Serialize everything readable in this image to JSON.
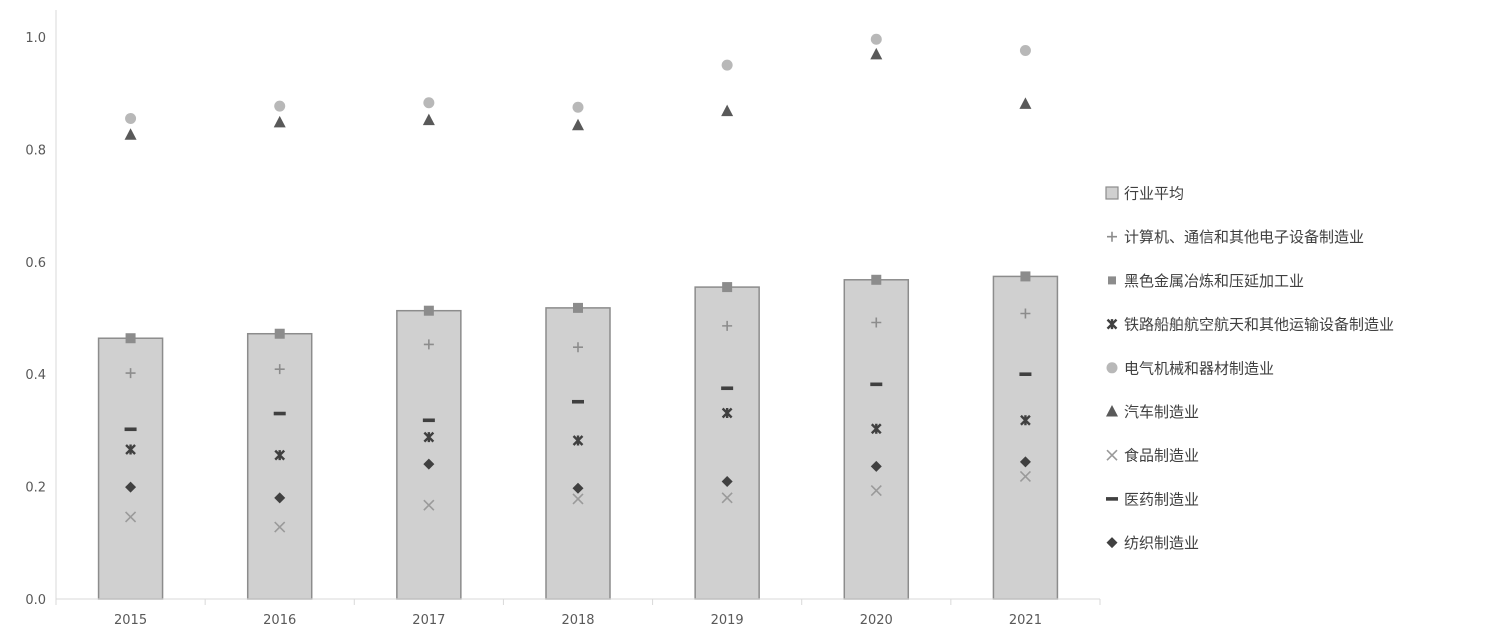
{
  "chart_data": {
    "type": "bar",
    "title": "",
    "xlabel": "",
    "ylabel": "",
    "ylim": [
      0,
      1.05
    ],
    "yticks": [
      "0.0",
      "0.2",
      "0.4",
      "0.6",
      "0.8",
      "1.0"
    ],
    "grid": false,
    "legend_position": "right",
    "categories": [
      "2015",
      "2016",
      "2017",
      "2018",
      "2019",
      "2020",
      "2021"
    ],
    "series": [
      {
        "name": "行业平均",
        "kind": "bar",
        "marker": "bar",
        "color": "#d0d0d0",
        "values": [
          0.464,
          0.472,
          0.513,
          0.518,
          0.555,
          0.568,
          0.574
        ]
      },
      {
        "name": "计算机、通信和其他电子设备制造业",
        "marker": "plus",
        "color": "#8c8c8c",
        "values": [
          0.402,
          0.409,
          0.453,
          0.448,
          0.486,
          0.492,
          0.508
        ]
      },
      {
        "name": "黑色金属冶炼和压延加工业",
        "marker": "square",
        "color": "#8c8c8c",
        "values": [
          0.464,
          0.472,
          0.513,
          0.518,
          0.555,
          0.568,
          0.574
        ]
      },
      {
        "name": "铁路船舶航空航天和其他运输设备制造业",
        "marker": "star",
        "color": "#404040",
        "values": [
          0.266,
          0.256,
          0.288,
          0.282,
          0.331,
          0.303,
          0.318
        ]
      },
      {
        "name": "电气机械和器材制造业",
        "marker": "circle",
        "color": "#b8b8b8",
        "values": [
          0.855,
          0.877,
          0.883,
          0.875,
          0.95,
          0.996,
          0.976
        ]
      },
      {
        "name": "汽车制造业",
        "marker": "triangle",
        "color": "#595959",
        "values": [
          0.826,
          0.848,
          0.852,
          0.843,
          0.868,
          0.969,
          0.881
        ]
      },
      {
        "name": "食品制造业",
        "marker": "x",
        "color": "#9a9a9a",
        "values": [
          0.146,
          0.128,
          0.167,
          0.178,
          0.18,
          0.193,
          0.218
        ]
      },
      {
        "name": "医药制造业",
        "marker": "dash",
        "color": "#404040",
        "values": [
          0.302,
          0.33,
          0.318,
          0.351,
          0.375,
          0.382,
          0.4
        ]
      },
      {
        "name": "纺织制造业",
        "marker": "diamond",
        "color": "#404040",
        "values": [
          0.199,
          0.18,
          0.24,
          0.197,
          0.209,
          0.236,
          0.244
        ]
      }
    ]
  }
}
